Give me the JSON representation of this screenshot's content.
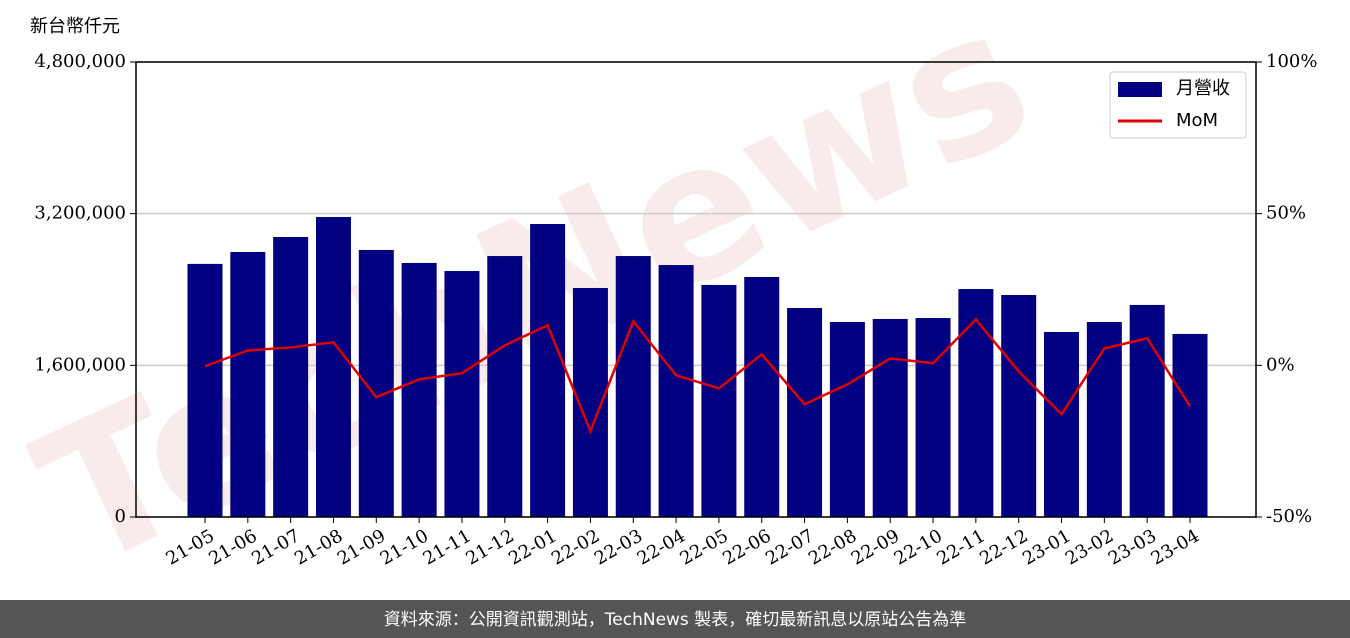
{
  "chart_data": {
    "type": "bar_line",
    "y_label": "新台幣仟元",
    "watermark": "TechNews",
    "footer": "資料來源：公開資訊觀測站，TechNews 製表，確切最新訊息以原站公告為準",
    "categories": [
      "21-05",
      "21-06",
      "21-07",
      "21-08",
      "21-09",
      "21-10",
      "21-11",
      "21-12",
      "22-01",
      "22-02",
      "22-03",
      "22-04",
      "22-05",
      "22-06",
      "22-07",
      "22-08",
      "22-09",
      "22-10",
      "22-11",
      "22-12",
      "23-01",
      "23-02",
      "23-03",
      "23-04"
    ],
    "series": [
      {
        "name": "月營收",
        "type": "bar",
        "color": "#000080",
        "values": [
          2670000,
          2796000,
          2954000,
          3165000,
          2817000,
          2680000,
          2595000,
          2753000,
          3091000,
          2416000,
          2753000,
          2658000,
          2448000,
          2532000,
          2205000,
          2057000,
          2089000,
          2099000,
          2405000,
          2342000,
          1952000,
          2057000,
          2237000,
          1931000
        ]
      },
      {
        "name": "MoM",
        "type": "line",
        "color": "#e00000",
        "axis": "y2",
        "values": [
          -0.3,
          4.9,
          5.9,
          7.6,
          -10.5,
          -4.6,
          -2.6,
          6.6,
          13.2,
          -21.7,
          14.5,
          -3.3,
          -7.6,
          3.6,
          -12.8,
          -6.3,
          2.3,
          0.7,
          15.1,
          -2.0,
          -16.1,
          5.6,
          8.9,
          -13.5
        ]
      }
    ],
    "ylim": [
      0,
      4800000
    ],
    "yticks": [
      0,
      {
        "value": 1600000,
        "label": "1,600,000"
      },
      {
        "value": 3200000,
        "label": "3,200,000"
      },
      {
        "value": 4800000,
        "label": "4,800,000"
      }
    ],
    "y2lim": [
      -50,
      100
    ],
    "y2ticks": [
      {
        "value": -50,
        "label": "-50%"
      },
      {
        "value": 0,
        "label": "0%"
      },
      {
        "value": 50,
        "label": "50%"
      },
      {
        "value": 100,
        "label": "100%"
      }
    ],
    "grid": true,
    "legend": "upper right"
  }
}
